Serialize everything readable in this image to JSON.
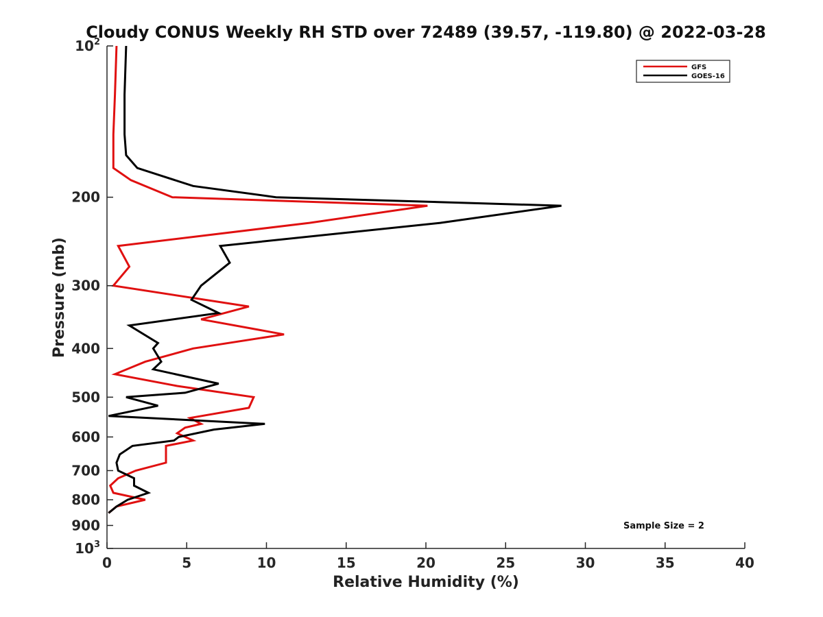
{
  "chart_data": {
    "type": "line",
    "title": "Cloudy CONUS Weekly RH STD over 72489 (39.57, -119.80) @ 2022-03-28",
    "xlabel": "Relative Humidity (%)",
    "ylabel": "Pressure (mb)",
    "xlim": [
      0,
      40
    ],
    "ylim": [
      100,
      1000
    ],
    "yscale": "log",
    "y_reversed": true,
    "x_ticks": [
      "0",
      "5",
      "10",
      "15",
      "20",
      "25",
      "30",
      "35",
      "40"
    ],
    "x_tick_values": [
      0,
      5,
      10,
      15,
      20,
      25,
      30,
      35,
      40
    ],
    "y_ticks": [
      {
        "value": 100,
        "label": "10",
        "sup": "2"
      },
      {
        "value": 200,
        "label": "200",
        "sup": ""
      },
      {
        "value": 300,
        "label": "300",
        "sup": ""
      },
      {
        "value": 400,
        "label": "400",
        "sup": ""
      },
      {
        "value": 500,
        "label": "500",
        "sup": ""
      },
      {
        "value": 600,
        "label": "600",
        "sup": ""
      },
      {
        "value": 700,
        "label": "700",
        "sup": ""
      },
      {
        "value": 800,
        "label": "800",
        "sup": ""
      },
      {
        "value": 900,
        "label": "900",
        "sup": ""
      },
      {
        "value": 1000,
        "label": "10",
        "sup": "3"
      }
    ],
    "grid": false,
    "legend_position": "top-right",
    "annotation": "Sample Size = 2",
    "series": [
      {
        "name": "GFS",
        "color": "#e01010",
        "points": [
          [
            0.6,
            100
          ],
          [
            0.5,
            125
          ],
          [
            0.4,
            150
          ],
          [
            0.4,
            175
          ],
          [
            1.5,
            185
          ],
          [
            4.1,
            200
          ],
          [
            20.1,
            208
          ],
          [
            12.7,
            225
          ],
          [
            0.7,
            250
          ],
          [
            1.4,
            275
          ],
          [
            0.4,
            300
          ],
          [
            8.9,
            330
          ],
          [
            5.9,
            350
          ],
          [
            11.1,
            375
          ],
          [
            5.4,
            400
          ],
          [
            2.4,
            425
          ],
          [
            0.5,
            450
          ],
          [
            4.4,
            475
          ],
          [
            9.2,
            500
          ],
          [
            8.9,
            525
          ],
          [
            5.2,
            550
          ],
          [
            5.9,
            565
          ],
          [
            4.9,
            575
          ],
          [
            4.4,
            590
          ],
          [
            5.4,
            610
          ],
          [
            3.7,
            625
          ],
          [
            3.7,
            650
          ],
          [
            3.7,
            675
          ],
          [
            1.8,
            700
          ],
          [
            0.7,
            725
          ],
          [
            0.2,
            750
          ],
          [
            0.4,
            775
          ],
          [
            2.4,
            800
          ],
          [
            0.6,
            825
          ],
          [
            0.1,
            850
          ]
        ]
      },
      {
        "name": "GOES-16",
        "color": "#000000",
        "points": [
          [
            1.2,
            100
          ],
          [
            1.1,
            125
          ],
          [
            1.1,
            150
          ],
          [
            1.2,
            165
          ],
          [
            1.9,
            175
          ],
          [
            5.4,
            190
          ],
          [
            10.6,
            200
          ],
          [
            28.5,
            208
          ],
          [
            20.9,
            225
          ],
          [
            7.1,
            250
          ],
          [
            7.7,
            270
          ],
          [
            5.9,
            300
          ],
          [
            5.3,
            320
          ],
          [
            7.0,
            340
          ],
          [
            1.4,
            360
          ],
          [
            3.2,
            390
          ],
          [
            2.9,
            400
          ],
          [
            3.4,
            425
          ],
          [
            2.9,
            440
          ],
          [
            7.0,
            470
          ],
          [
            4.9,
            490
          ],
          [
            1.2,
            500
          ],
          [
            3.2,
            520
          ],
          [
            0.1,
            545
          ],
          [
            9.9,
            565
          ],
          [
            6.7,
            580
          ],
          [
            4.5,
            600
          ],
          [
            4.2,
            610
          ],
          [
            1.6,
            625
          ],
          [
            0.8,
            650
          ],
          [
            0.6,
            675
          ],
          [
            0.7,
            700
          ],
          [
            1.7,
            725
          ],
          [
            1.7,
            750
          ],
          [
            2.6,
            775
          ],
          [
            1.3,
            800
          ],
          [
            0.6,
            825
          ],
          [
            0.1,
            850
          ]
        ]
      }
    ]
  }
}
